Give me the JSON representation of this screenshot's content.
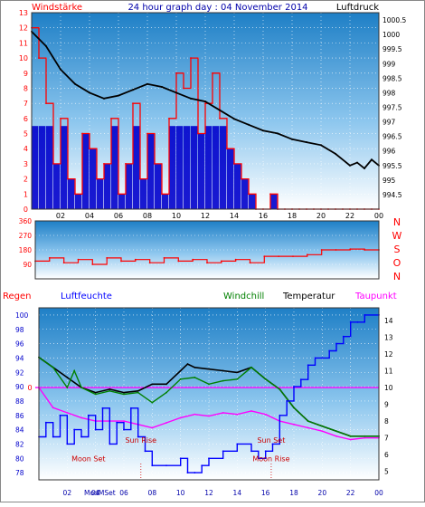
{
  "colors": {
    "windspeed": "#ff0000",
    "windbar": "#0000cc",
    "pressure": "#000000",
    "direction": "#ff0000",
    "humidity": "#0000ff",
    "windchill": "#008000",
    "temperature": "#000000",
    "dewpoint": "#ff00ff",
    "rain": "#ff0000",
    "events": "#cc0000",
    "humidity_axis": "#0000cc"
  },
  "chart_data": [
    {
      "type": "line",
      "title": "24 hour graph day : 04 November 2014",
      "left_label": "Windstärke",
      "right_label": "Luftdruck",
      "x_ticks": [
        "02",
        "04",
        "06",
        "08",
        "10",
        "12",
        "14",
        "16",
        "18",
        "20",
        "22",
        "00"
      ],
      "ylim_left": [
        0,
        13
      ],
      "y_ticks_left": [
        0,
        1,
        2,
        3,
        4,
        5,
        6,
        7,
        8,
        9,
        10,
        11,
        12,
        13
      ],
      "ylim_right": [
        994.0,
        1000.75
      ],
      "y_ticks_right": [
        "994.5",
        "995",
        "995.5",
        "996",
        "996.5",
        "997",
        "997.5",
        "998",
        "998.5",
        "999",
        "999.5",
        "1000",
        "1000.5"
      ],
      "series": [
        {
          "name": "Windstärke",
          "x": [
            0,
            0.5,
            1,
            1.5,
            2,
            2.5,
            3,
            3.5,
            4,
            4.5,
            5,
            5.5,
            6,
            6.5,
            7,
            7.5,
            8,
            8.5,
            9,
            9.5,
            10,
            10.5,
            11,
            11.5,
            12,
            12.5,
            13,
            13.5,
            14,
            14.5,
            15,
            15.5,
            16,
            16.5,
            17,
            17.5,
            18,
            18.5,
            19,
            19.5,
            20,
            20.5,
            21,
            21.5,
            22,
            22.5,
            23,
            23.5,
            24
          ],
          "values": [
            12,
            10,
            7,
            3,
            6,
            2,
            1,
            5,
            4,
            2,
            3,
            6,
            1,
            3,
            7,
            2,
            5,
            3,
            1,
            6,
            9,
            8,
            10,
            5,
            7,
            9,
            6,
            4,
            3,
            2,
            1,
            0,
            0,
            1,
            0,
            0,
            0,
            0,
            0,
            0,
            0,
            0,
            0,
            0,
            0,
            0,
            0,
            0,
            0
          ]
        },
        {
          "name": "Luftdruck",
          "x": [
            0,
            1,
            2,
            3,
            4,
            5,
            6,
            7,
            8,
            9,
            10,
            11,
            12,
            13,
            14,
            15,
            16,
            17,
            18,
            19,
            20,
            21,
            22,
            22.5,
            23,
            23.5,
            24
          ],
          "values": [
            1000.1,
            999.6,
            998.8,
            998.3,
            998.0,
            997.8,
            997.9,
            998.1,
            998.3,
            998.2,
            998.0,
            997.8,
            997.7,
            997.4,
            997.1,
            996.9,
            996.7,
            996.6,
            996.4,
            996.3,
            996.2,
            995.9,
            995.5,
            995.6,
            995.4,
            995.7,
            995.5
          ]
        }
      ]
    },
    {
      "type": "line",
      "ylim": [
        0,
        360
      ],
      "y_ticks": [
        90,
        180,
        270,
        360
      ],
      "compass": [
        "N",
        "W",
        "S",
        "O",
        "N"
      ],
      "series": [
        {
          "name": "Windrichtung",
          "x": [
            0,
            1,
            2,
            3,
            4,
            5,
            6,
            7,
            8,
            9,
            10,
            11,
            12,
            13,
            14,
            15,
            16,
            17,
            18,
            19,
            20,
            21,
            22,
            23,
            24
          ],
          "values": [
            110,
            130,
            100,
            120,
            90,
            130,
            110,
            120,
            100,
            130,
            110,
            120,
            100,
            110,
            120,
            100,
            140,
            140,
            140,
            150,
            180,
            180,
            185,
            180,
            180
          ]
        }
      ]
    },
    {
      "type": "line",
      "legend": [
        "Regen",
        "Luftfeuchte",
        "Windchill",
        "Temperatur",
        "Taupunkt"
      ],
      "x_ticks": [
        "02",
        "04",
        "06",
        "08",
        "10",
        "12",
        "14",
        "16",
        "18",
        "20",
        "22",
        "00"
      ],
      "ylim_left": [
        77,
        101
      ],
      "y_ticks_left": [
        78,
        80,
        82,
        84,
        86,
        88,
        90,
        92,
        94,
        96,
        98,
        100
      ],
      "ylim_right": [
        4.5,
        14.75
      ],
      "y_ticks_right": [
        5,
        6,
        7,
        8,
        9,
        10,
        11,
        12,
        13,
        14
      ],
      "rain_marker": "0",
      "events": [
        {
          "label": "Moon Set",
          "x": 3.5,
          "level": 5.6
        },
        {
          "label": "Sun Rise",
          "x": 7.2,
          "level": 6.7
        },
        {
          "label": "Sun Set",
          "x": 16.4,
          "level": 6.7
        },
        {
          "label": "Moon Rise",
          "x": 16.4,
          "level": 5.6
        }
      ],
      "bottom_annotation": "ModMSet",
      "series": [
        {
          "name": "Temperatur",
          "x": [
            0,
            1,
            2,
            3,
            4,
            5,
            6,
            7,
            8,
            9,
            10,
            10.5,
            11,
            12,
            13,
            14,
            15,
            16,
            17,
            18,
            19,
            20,
            21,
            22,
            23,
            24
          ],
          "values": [
            11.8,
            11.2,
            10.6,
            10.0,
            9.7,
            9.9,
            9.7,
            9.8,
            10.2,
            10.2,
            11.0,
            11.4,
            11.2,
            11.1,
            11.0,
            10.9,
            11.2,
            10.5,
            9.9,
            8.8,
            8.0,
            7.7,
            7.4,
            7.1,
            7.1,
            7.1
          ]
        },
        {
          "name": "Windchill",
          "x": [
            0,
            1,
            2,
            2.5,
            3,
            4,
            5,
            6,
            7,
            8,
            9,
            10,
            11,
            12,
            13,
            14,
            15,
            16,
            17,
            18,
            19,
            20,
            21,
            22,
            23,
            24
          ],
          "values": [
            11.8,
            11.2,
            10.0,
            11.0,
            10.0,
            9.6,
            9.8,
            9.6,
            9.7,
            9.1,
            9.7,
            10.5,
            10.6,
            10.2,
            10.4,
            10.5,
            11.2,
            10.5,
            9.9,
            8.8,
            8.0,
            7.7,
            7.4,
            7.1,
            7.1,
            7.1
          ]
        },
        {
          "name": "Taupunkt",
          "x": [
            0,
            1,
            2,
            3,
            4,
            5,
            6,
            7,
            8,
            9,
            10,
            11,
            12,
            13,
            14,
            15,
            16,
            17,
            18,
            19,
            20,
            21,
            22,
            23,
            24
          ],
          "values": [
            10.0,
            8.8,
            8.5,
            8.2,
            8.0,
            8.0,
            8.0,
            7.8,
            7.6,
            7.9,
            8.2,
            8.4,
            8.3,
            8.5,
            8.4,
            8.6,
            8.4,
            8.0,
            7.8,
            7.6,
            7.4,
            7.1,
            6.9,
            7.0,
            7.0
          ]
        },
        {
          "name": "Luftfeuchte",
          "x": [
            0,
            0.5,
            1,
            1.5,
            2,
            2.5,
            3,
            3.5,
            4,
            4.5,
            5,
            5.5,
            6,
            6.5,
            7,
            7.5,
            8,
            9,
            10,
            10.5,
            11,
            11.5,
            12,
            13,
            14,
            15,
            15.5,
            16,
            16.5,
            17,
            17.5,
            18,
            18.5,
            19,
            19.5,
            20,
            20.5,
            21,
            21.5,
            22,
            22.5,
            23,
            24
          ],
          "values": [
            83,
            85,
            83,
            86,
            82,
            84,
            83,
            86,
            84,
            87,
            82,
            85,
            84,
            87,
            83,
            81,
            79,
            79,
            80,
            78,
            78,
            79,
            80,
            81,
            82,
            81,
            80,
            81,
            82,
            86,
            88,
            90,
            91,
            93,
            94,
            94,
            95,
            96,
            97,
            99,
            99,
            100,
            100
          ]
        }
      ]
    }
  ]
}
